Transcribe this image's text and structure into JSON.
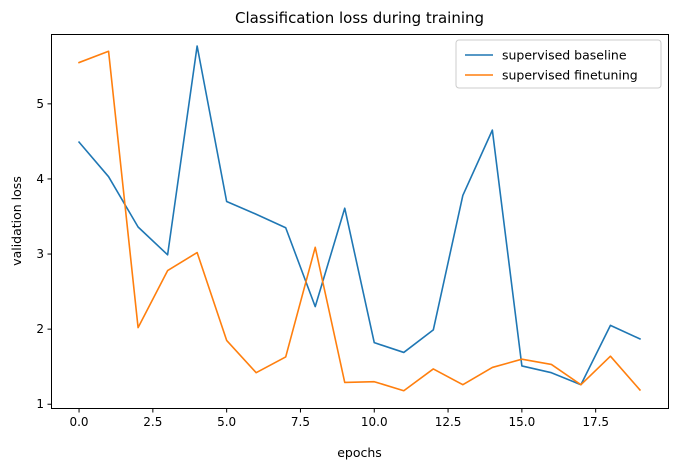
{
  "chart_data": {
    "type": "line",
    "title": "Classification loss during training",
    "xlabel": "epochs",
    "ylabel": "validation loss",
    "xlim": [
      -0.95,
      19.95
    ],
    "ylim": [
      0.95,
      5.93
    ],
    "xticks": [
      0.0,
      2.5,
      5.0,
      7.5,
      10.0,
      12.5,
      15.0,
      17.5
    ],
    "xtick_labels": [
      "0.0",
      "2.5",
      "5.0",
      "7.5",
      "10.0",
      "12.5",
      "15.0",
      "17.5"
    ],
    "yticks": [
      1,
      2,
      3,
      4,
      5
    ],
    "ytick_labels": [
      "1",
      "2",
      "3",
      "4",
      "5"
    ],
    "grid": false,
    "legend_position": "top-right",
    "x": [
      0,
      1,
      2,
      3,
      4,
      5,
      6,
      7,
      8,
      9,
      10,
      11,
      12,
      13,
      14,
      15,
      16,
      17,
      18,
      19
    ],
    "series": [
      {
        "name": "supervised baseline",
        "color": "#1f77b4",
        "values": [
          4.49,
          4.03,
          3.36,
          2.99,
          5.77,
          3.7,
          3.53,
          3.35,
          2.3,
          3.61,
          1.82,
          1.69,
          1.99,
          3.78,
          4.65,
          1.51,
          1.42,
          1.26,
          2.05,
          1.87
        ]
      },
      {
        "name": "supervised finetuning",
        "color": "#ff7f0e",
        "values": [
          5.55,
          5.7,
          2.02,
          2.78,
          3.02,
          1.85,
          1.42,
          1.63,
          3.09,
          1.29,
          1.3,
          1.18,
          1.47,
          1.26,
          1.49,
          1.6,
          1.53,
          1.26,
          1.64,
          1.19
        ]
      }
    ]
  }
}
